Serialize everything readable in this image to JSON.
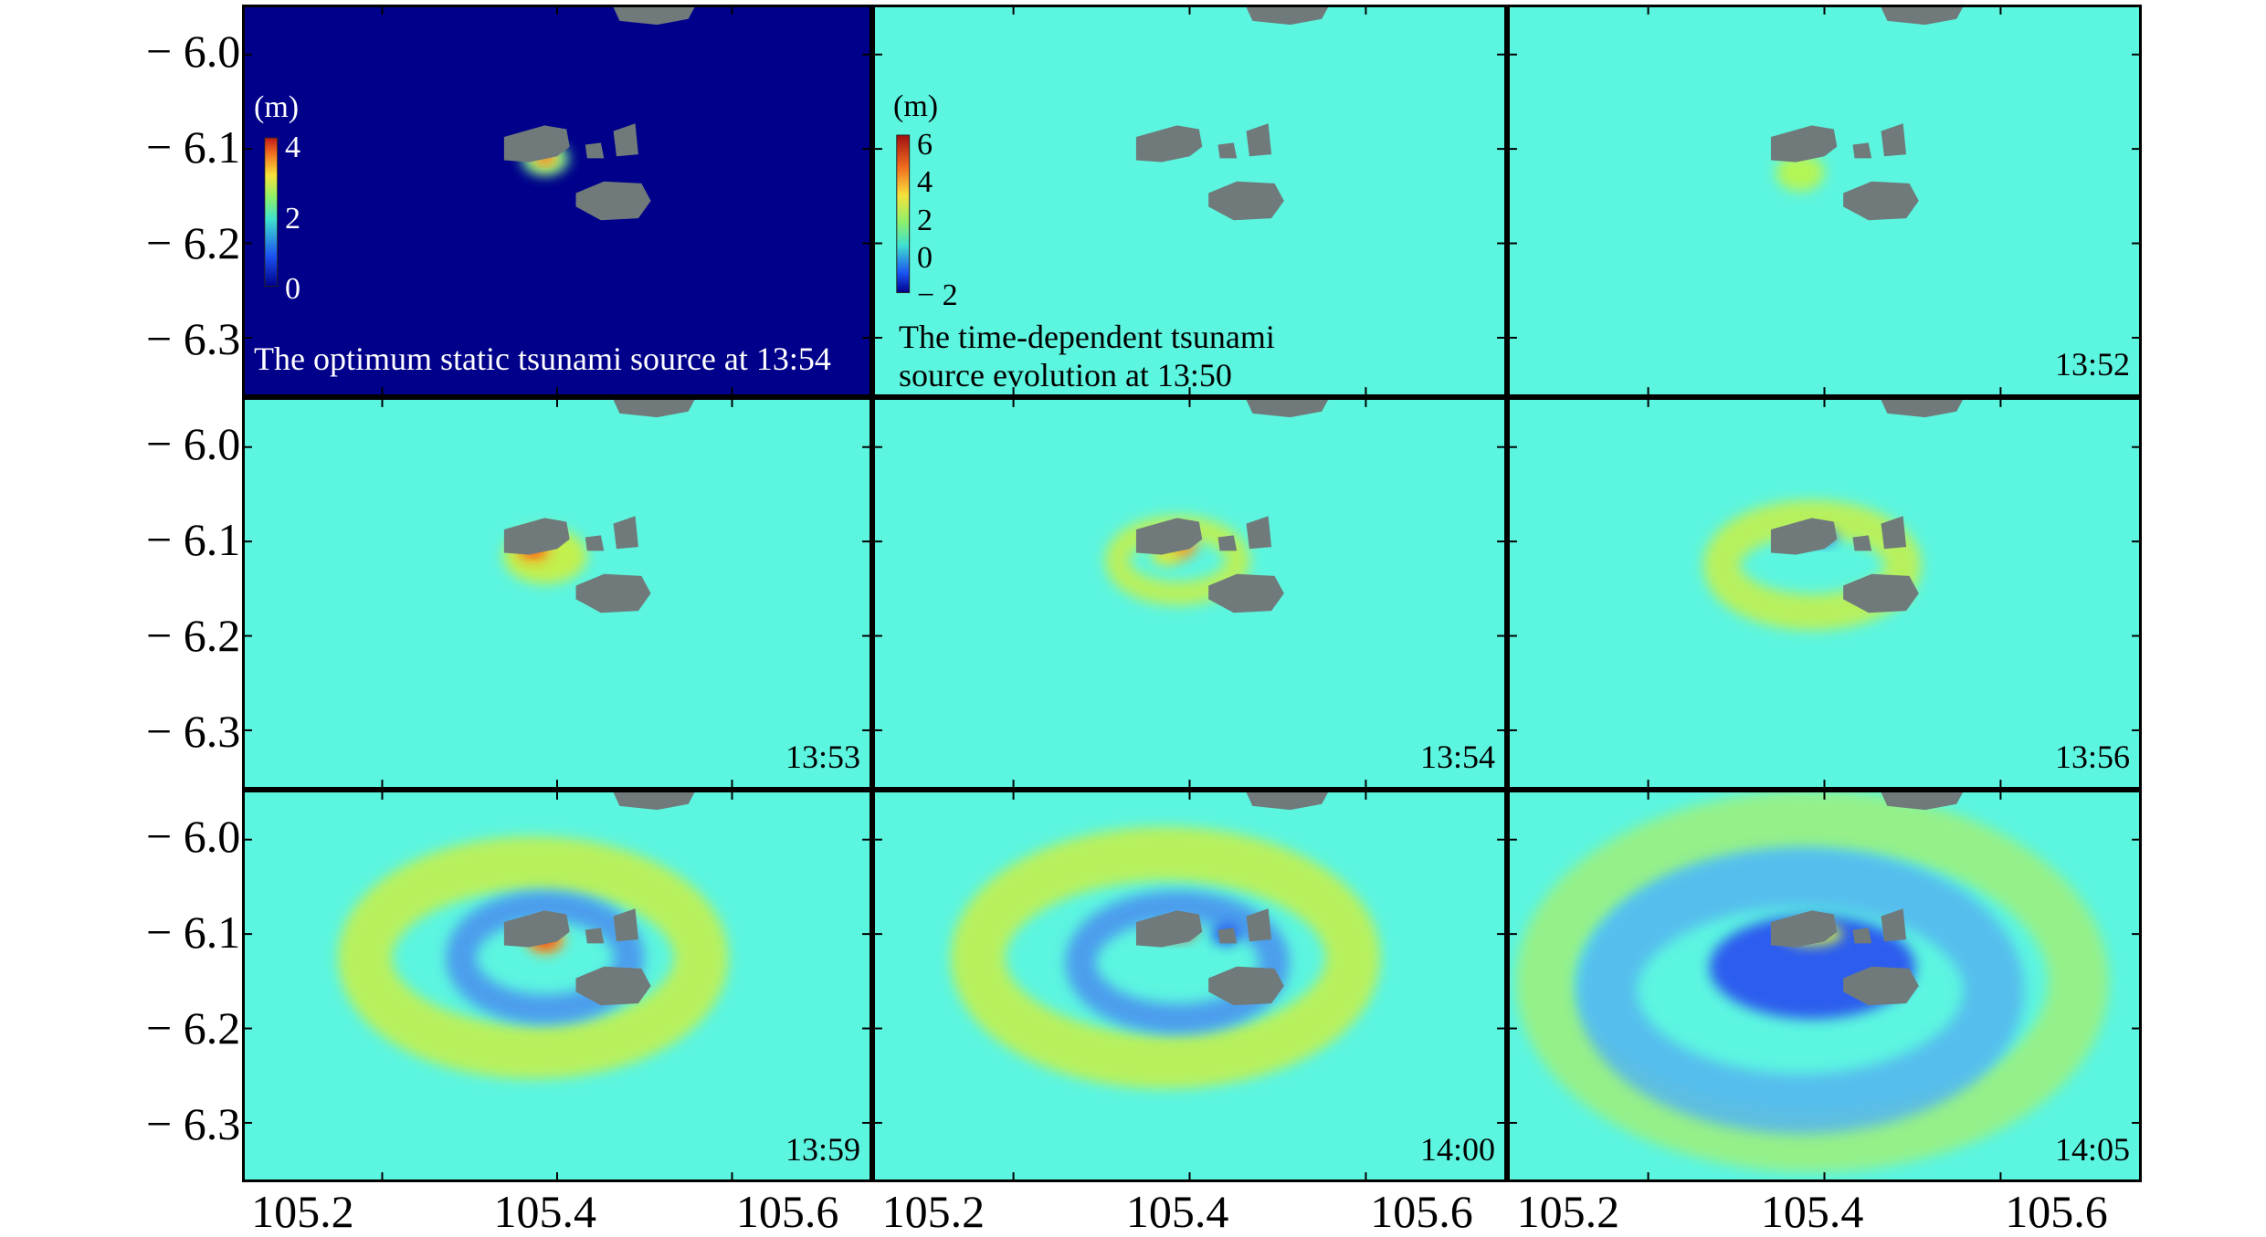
{
  "chart_data": {
    "type": "heatmap",
    "layout": "3x3 grid of map panels",
    "x_axis": {
      "ticks": [
        "105.2",
        "105.4",
        "105.6"
      ],
      "range": [
        105.15,
        105.67
      ]
    },
    "y_axis": {
      "ticks": [
        "− 6.0",
        "− 6.1",
        "− 6.2",
        "− 6.3"
      ],
      "values": [
        -6.0,
        -6.1,
        -6.2,
        -6.3
      ],
      "range": [
        -5.95,
        -6.36
      ]
    },
    "colormap": "jet",
    "land_color": "#707a7a",
    "panels": [
      {
        "label": "The optimum static tsunami source at 13:54",
        "label_lines": [
          "The optimum static tsunami source at 13:54"
        ],
        "background": "#00008a",
        "colorbar": {
          "title": "(m)",
          "ticks": [
            "4",
            "2",
            "0"
          ],
          "range": [
            0,
            4.5
          ]
        },
        "features": [
          {
            "kind": "peak",
            "lon": 105.4,
            "lat": -6.11,
            "rx": 0.02,
            "ry": 0.018,
            "color": "#6ef09a"
          },
          {
            "kind": "peak",
            "lon": 105.4,
            "lat": -6.11,
            "rx": 0.012,
            "ry": 0.012,
            "color": "#f7e23b"
          },
          {
            "kind": "peak",
            "lon": 105.4,
            "lat": -6.108,
            "rx": 0.006,
            "ry": 0.006,
            "color": "#e8301f"
          }
        ]
      },
      {
        "label": "The time-dependent tsunami source evolution at 13:50",
        "label_lines": [
          "The time-dependent tsunami",
          "source evolution at 13:50"
        ],
        "background": "#5cf5e0",
        "colorbar": {
          "title": "(m)",
          "ticks": [
            "6",
            "4",
            "2",
            "0",
            "− 2"
          ],
          "range": [
            -2.5,
            6.5
          ]
        },
        "features": []
      },
      {
        "label": "13:52",
        "background": "#5cf5e0",
        "features": [
          {
            "kind": "peak",
            "lon": 105.39,
            "lat": -6.125,
            "rx": 0.02,
            "ry": 0.02,
            "color": "#b9f54f"
          }
        ]
      },
      {
        "label": "13:53",
        "background": "#5cf5e0",
        "features": [
          {
            "kind": "peak",
            "lon": 105.4,
            "lat": -6.115,
            "rx": 0.035,
            "ry": 0.03,
            "color": "#c8f046"
          },
          {
            "kind": "peak",
            "lon": 105.39,
            "lat": -6.108,
            "rx": 0.014,
            "ry": 0.014,
            "color": "#ff9a1f"
          },
          {
            "kind": "peak",
            "lon": 105.39,
            "lat": -6.108,
            "rx": 0.006,
            "ry": 0.006,
            "color": "#e8301f"
          }
        ]
      },
      {
        "label": "13:54",
        "background": "#5cf5e0",
        "features": [
          {
            "kind": "ring",
            "lon": 105.4,
            "lat": -6.12,
            "rx": 0.05,
            "ry": 0.035,
            "width": 0.02,
            "color": "#c8f046"
          },
          {
            "kind": "peak",
            "lon": 105.4,
            "lat": -6.105,
            "rx": 0.016,
            "ry": 0.014,
            "color": "#ff9a1f"
          },
          {
            "kind": "peak",
            "lon": 105.39,
            "lat": -6.115,
            "rx": 0.012,
            "ry": 0.01,
            "color": "#d7ee3d"
          }
        ]
      },
      {
        "label": "13:56",
        "background": "#5cf5e0",
        "features": [
          {
            "kind": "ring",
            "lon": 105.4,
            "lat": -6.125,
            "rx": 0.075,
            "ry": 0.05,
            "width": 0.03,
            "color": "#c8f046"
          },
          {
            "kind": "peak",
            "lon": 105.41,
            "lat": -6.095,
            "rx": 0.01,
            "ry": 0.008,
            "color": "#2b55f0"
          }
        ]
      },
      {
        "label": "13:59",
        "background": "#5cf5e0",
        "features": [
          {
            "kind": "ring",
            "lon": 105.39,
            "lat": -6.125,
            "rx": 0.14,
            "ry": 0.1,
            "width": 0.045,
            "color": "#c8f046"
          },
          {
            "kind": "ring",
            "lon": 105.4,
            "lat": -6.125,
            "rx": 0.07,
            "ry": 0.055,
            "width": 0.025,
            "color": "#4a8ff0"
          },
          {
            "kind": "peak",
            "lon": 105.4,
            "lat": -6.105,
            "rx": 0.016,
            "ry": 0.016,
            "color": "#ff9a1f"
          },
          {
            "kind": "peak",
            "lon": 105.4,
            "lat": -6.105,
            "rx": 0.008,
            "ry": 0.008,
            "color": "#e8301f"
          }
        ]
      },
      {
        "label": "14:00",
        "background": "#5cf5e0",
        "features": [
          {
            "kind": "ring",
            "lon": 105.39,
            "lat": -6.125,
            "rx": 0.155,
            "ry": 0.11,
            "width": 0.045,
            "color": "#c8f046"
          },
          {
            "kind": "ring",
            "lon": 105.4,
            "lat": -6.13,
            "rx": 0.08,
            "ry": 0.06,
            "width": 0.025,
            "color": "#4a8ff0"
          },
          {
            "kind": "peak",
            "lon": 105.4,
            "lat": -6.097,
            "rx": 0.015,
            "ry": 0.009,
            "color": "#e8301f"
          },
          {
            "kind": "peak",
            "lon": 105.44,
            "lat": -6.1,
            "rx": 0.012,
            "ry": 0.012,
            "color": "#2b55f0"
          }
        ]
      },
      {
        "label": "14:05",
        "background": "#5cf5e0",
        "features": [
          {
            "kind": "ring",
            "lon": 105.4,
            "lat": -6.15,
            "rx": 0.22,
            "ry": 0.17,
            "width": 0.05,
            "color": "#9ff07a"
          },
          {
            "kind": "ring",
            "lon": 105.39,
            "lat": -6.16,
            "rx": 0.16,
            "ry": 0.12,
            "width": 0.05,
            "color": "#55b5f0"
          },
          {
            "kind": "peak",
            "lon": 105.4,
            "lat": -6.135,
            "rx": 0.085,
            "ry": 0.055,
            "color": "#2b55f0"
          },
          {
            "kind": "peak",
            "lon": 105.4,
            "lat": -6.1,
            "rx": 0.025,
            "ry": 0.012,
            "color": "#d7ee3d"
          }
        ]
      }
    ]
  }
}
